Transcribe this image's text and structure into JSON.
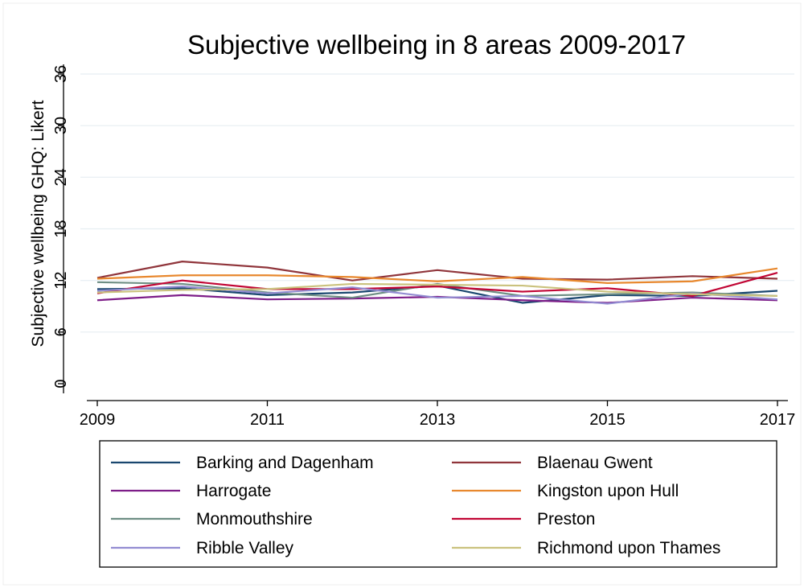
{
  "chart_data": {
    "type": "line",
    "title": "Subjective wellbeing in 8 areas 2009-2017",
    "xlabel": "",
    "ylabel": "Subjective wellbeing GHQ: Likert",
    "x": [
      2009,
      2010,
      2011,
      2012,
      2013,
      2014,
      2015,
      2016,
      2017
    ],
    "xticks": [
      2009,
      2011,
      2013,
      2015,
      2017
    ],
    "xticklabels": [
      "2009",
      "2011",
      "2013",
      "2015",
      "2017"
    ],
    "yticks": [
      0,
      6,
      12,
      18,
      24,
      30,
      36
    ],
    "yticklabels": [
      "0",
      "6",
      "12",
      "18",
      "24",
      "30",
      "36"
    ],
    "xlim": [
      2009,
      2017
    ],
    "ylim": [
      0,
      36
    ],
    "grid": "horizontal",
    "legend_position": "bottom",
    "series": [
      {
        "name": "Barking and Dagenham",
        "color": "#1a476f",
        "values": [
          11.0,
          11.1,
          10.3,
          10.6,
          11.4,
          9.4,
          10.3,
          10.2,
          10.8
        ]
      },
      {
        "name": "Blaenau Gwent",
        "color": "#90353b",
        "values": [
          12.3,
          14.2,
          13.5,
          12.0,
          13.2,
          12.2,
          12.1,
          12.5,
          12.2
        ]
      },
      {
        "name": "Harrogate",
        "color": "#7d1d88",
        "values": [
          9.7,
          10.3,
          9.8,
          9.9,
          10.1,
          9.7,
          9.4,
          10.0,
          9.7
        ]
      },
      {
        "name": "Kingston upon Hull",
        "color": "#e8882e",
        "values": [
          12.2,
          12.6,
          12.6,
          12.4,
          11.9,
          12.4,
          11.7,
          11.9,
          13.4
        ]
      },
      {
        "name": "Monmouthshire",
        "color": "#6e8e84",
        "values": [
          11.8,
          11.6,
          10.6,
          10.0,
          11.6,
          10.2,
          10.4,
          10.6,
          10.2
        ]
      },
      {
        "name": "Preston",
        "color": "#c10534",
        "values": [
          10.5,
          12.0,
          11.0,
          11.0,
          11.3,
          10.7,
          11.1,
          10.2,
          12.9
        ]
      },
      {
        "name": "Ribble Valley",
        "color": "#938dd2",
        "values": [
          10.8,
          11.3,
          10.5,
          11.2,
          10.0,
          10.2,
          9.3,
          10.5,
          9.8
        ]
      },
      {
        "name": "Richmond upon Thames",
        "color": "#cac27e",
        "values": [
          10.6,
          10.9,
          11.0,
          11.6,
          11.5,
          11.4,
          10.7,
          10.4,
          10.2
        ]
      }
    ]
  }
}
